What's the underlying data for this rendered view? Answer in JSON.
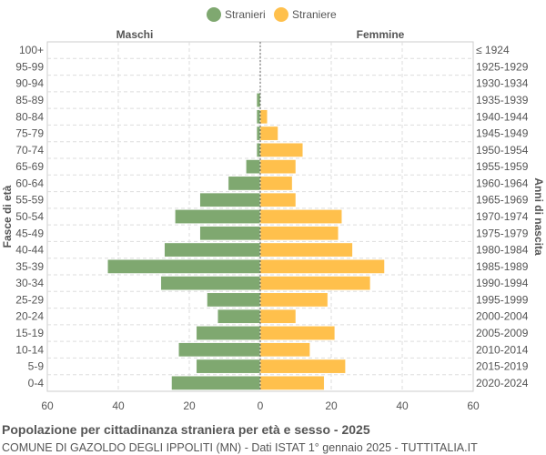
{
  "chart_data": {
    "type": "bar",
    "orientation": "horizontal-pyramid",
    "title": "Popolazione per cittadinanza straniera per età e sesso - 2025",
    "subtitle": "COMUNE DI GAZOLDO DEGLI IPPOLITI (MN) - Dati ISTAT 1° gennaio 2025 - TUTTITALIA.IT",
    "ylabel_left": "Fasce di età",
    "ylabel_right": "Anni di nascita",
    "left_header": "Maschi",
    "right_header": "Femmine",
    "xlim": [
      -60,
      60
    ],
    "xticks": [
      -60,
      -40,
      -20,
      0,
      20,
      40,
      60
    ],
    "xtick_labels": [
      "60",
      "40",
      "20",
      "0",
      "20",
      "40",
      "60"
    ],
    "grid": true,
    "legend_position": "top",
    "categories": [
      "100+",
      "95-99",
      "90-94",
      "85-89",
      "80-84",
      "75-79",
      "70-74",
      "65-69",
      "60-64",
      "55-59",
      "50-54",
      "45-49",
      "40-44",
      "35-39",
      "30-34",
      "25-29",
      "20-24",
      "15-19",
      "10-14",
      "5-9",
      "0-4"
    ],
    "birth_years": [
      "≤ 1924",
      "1925-1929",
      "1930-1934",
      "1935-1939",
      "1940-1944",
      "1945-1949",
      "1950-1954",
      "1955-1959",
      "1960-1964",
      "1965-1969",
      "1970-1974",
      "1975-1979",
      "1980-1984",
      "1985-1989",
      "1990-1994",
      "1995-1999",
      "2000-2004",
      "2005-2009",
      "2010-2014",
      "2015-2019",
      "2020-2024"
    ],
    "series": [
      {
        "name": "Stranieri",
        "color": "#7fa870",
        "values": [
          0,
          0,
          0,
          1,
          1,
          1,
          1,
          4,
          9,
          17,
          24,
          17,
          27,
          43,
          28,
          15,
          12,
          18,
          23,
          18,
          25
        ]
      },
      {
        "name": "Straniere",
        "color": "#ffc04c",
        "values": [
          0,
          0,
          0,
          0,
          2,
          5,
          12,
          10,
          9,
          10,
          23,
          22,
          26,
          35,
          31,
          19,
          10,
          21,
          14,
          24,
          18
        ]
      }
    ]
  }
}
